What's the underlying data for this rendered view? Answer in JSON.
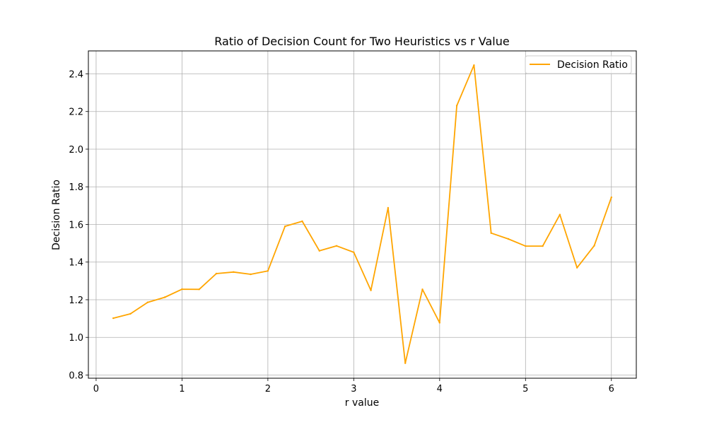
{
  "chart_data": {
    "type": "line",
    "title": "Ratio of Decision Count for Two Heuristics vs r Value",
    "xlabel": "r value",
    "ylabel": "Decision Ratio",
    "xlim": [
      -0.09,
      6.29
    ],
    "ylim": [
      0.783,
      2.522
    ],
    "xticks": [
      0,
      1,
      2,
      3,
      4,
      5,
      6
    ],
    "xtick_labels": [
      "0",
      "1",
      "2",
      "3",
      "4",
      "5",
      "6"
    ],
    "yticks": [
      0.8,
      1.0,
      1.2,
      1.4,
      1.6,
      1.8,
      2.0,
      2.2,
      2.4
    ],
    "ytick_labels": [
      "0.8",
      "1.0",
      "1.2",
      "1.4",
      "1.6",
      "1.8",
      "2.0",
      "2.2",
      "2.4"
    ],
    "grid": true,
    "legend_position": "top-right",
    "series": [
      {
        "name": "Decision Ratio",
        "color": "#FFA500",
        "x": [
          0.2,
          0.4,
          0.6,
          0.8,
          1.0,
          1.2,
          1.4,
          1.6,
          1.8,
          2.0,
          2.2,
          2.4,
          2.6,
          2.8,
          3.0,
          3.2,
          3.4,
          3.6,
          3.8,
          4.0,
          4.2,
          4.4,
          4.6,
          4.8,
          5.0,
          5.2,
          5.4,
          5.6,
          5.8,
          6.0
        ],
        "y": [
          1.102,
          1.125,
          1.186,
          1.213,
          1.256,
          1.255,
          1.339,
          1.347,
          1.335,
          1.353,
          1.59,
          1.617,
          1.46,
          1.486,
          1.452,
          1.25,
          1.688,
          0.863,
          1.255,
          1.078,
          2.231,
          2.446,
          1.554,
          1.523,
          1.485,
          1.485,
          1.652,
          1.37,
          1.487,
          1.744
        ]
      }
    ]
  }
}
